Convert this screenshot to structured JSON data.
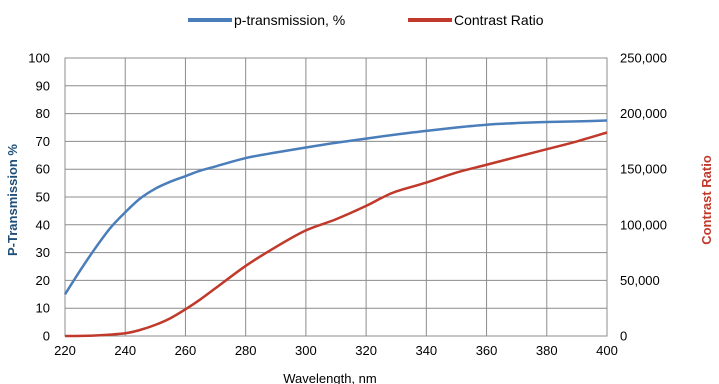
{
  "chart_data": {
    "type": "line",
    "xlabel": "Wavelength, nm",
    "ylabel": "P-Transmission %",
    "y2label": "Contrast Ratio",
    "xlim": [
      220,
      400
    ],
    "ylim": [
      0,
      100
    ],
    "y2lim": [
      0,
      250000
    ],
    "x_ticks": [
      "220",
      "240",
      "260",
      "280",
      "300",
      "320",
      "340",
      "360",
      "380",
      "400"
    ],
    "y_ticks": [
      "0",
      "10",
      "20",
      "30",
      "40",
      "50",
      "60",
      "70",
      "80",
      "90",
      "100"
    ],
    "y2_ticks": [
      "0",
      "50,000",
      "100,000",
      "150,000",
      "200,000",
      "250,000"
    ],
    "grid": true,
    "legend_position": "top",
    "series": [
      {
        "name": "p-transmission, %",
        "axis": "left",
        "color": "#4a7ebb",
        "x": [
          220,
          225,
          230,
          235,
          240,
          245,
          250,
          255,
          260,
          265,
          270,
          280,
          290,
          300,
          310,
          320,
          330,
          340,
          350,
          360,
          370,
          380,
          390,
          400
        ],
        "y": [
          15,
          23.5,
          31.5,
          38.8,
          44.5,
          49.5,
          53,
          55.5,
          57.5,
          59.5,
          61,
          64,
          66,
          67.8,
          69.5,
          71,
          72.5,
          73.8,
          75,
          76,
          76.6,
          77,
          77.2,
          77.5
        ]
      },
      {
        "name": "Contrast Ratio",
        "axis": "right",
        "color": "#c0392b",
        "x": [
          220,
          230,
          240,
          245,
          250,
          255,
          260,
          265,
          270,
          280,
          290,
          300,
          310,
          320,
          325,
          330,
          340,
          350,
          360,
          370,
          380,
          390,
          400
        ],
        "y": [
          0,
          500,
          2500,
          5500,
          10000,
          16000,
          24000,
          33000,
          43000,
          63000,
          80000,
          95000,
          105000,
          117000,
          124000,
          130000,
          138000,
          147000,
          154000,
          161000,
          168000,
          175000,
          183000
        ]
      }
    ]
  }
}
